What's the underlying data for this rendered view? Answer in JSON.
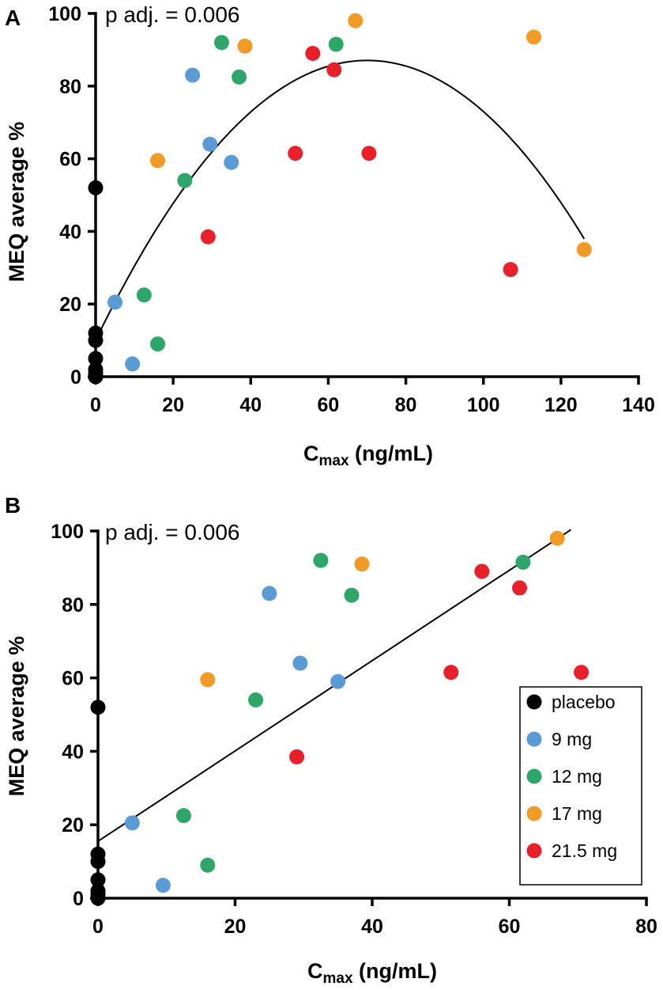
{
  "chart_data": [
    {
      "type": "scatter",
      "panel_label": "A",
      "annotation": "p adj. = 0.006",
      "xlabel_main": "C",
      "xlabel_sub": "max",
      "xlabel_unit": " (ng/mL)",
      "ylabel": "MEQ average %",
      "xlim": [
        0,
        140
      ],
      "ylim": [
        0,
        100
      ],
      "xticks": [
        0,
        20,
        40,
        60,
        80,
        100,
        120,
        140
      ],
      "yticks": [
        0,
        20,
        40,
        60,
        80,
        100
      ],
      "fit": {
        "kind": "quadratic",
        "x_range": [
          0,
          126
        ],
        "coef": [
          10,
          2.2,
          -0.0157
        ]
      },
      "series": [
        {
          "name": "placebo",
          "color": "#000000",
          "points": [
            [
              0,
              52
            ],
            [
              0,
              12
            ],
            [
              0,
              10
            ],
            [
              0,
              5
            ],
            [
              0,
              2
            ],
            [
              0,
              1
            ],
            [
              0,
              0
            ]
          ]
        },
        {
          "name": "9 mg",
          "color": "#5b9bd5",
          "points": [
            [
              5,
              20.5
            ],
            [
              9.5,
              3.5
            ],
            [
              25,
              83
            ],
            [
              29.5,
              64
            ],
            [
              35,
              59
            ]
          ]
        },
        {
          "name": "12 mg",
          "color": "#2ea66a",
          "points": [
            [
              12.5,
              22.5
            ],
            [
              16,
              9
            ],
            [
              23,
              54
            ],
            [
              32.5,
              92
            ],
            [
              37,
              82.5
            ],
            [
              62,
              91.5
            ]
          ]
        },
        {
          "name": "17 mg",
          "color": "#f29a26",
          "points": [
            [
              16,
              59.5
            ],
            [
              38.5,
              91
            ],
            [
              67,
              98
            ],
            [
              113,
              93.5
            ],
            [
              126,
              35
            ]
          ]
        },
        {
          "name": "21.5 mg",
          "color": "#e8202a",
          "points": [
            [
              29,
              38.5
            ],
            [
              51.5,
              61.5
            ],
            [
              56,
              89
            ],
            [
              61.5,
              84.5
            ],
            [
              70.5,
              61.5
            ],
            [
              107,
              29.5
            ]
          ]
        }
      ]
    },
    {
      "type": "scatter",
      "panel_label": "B",
      "annotation": "p adj. = 0.006",
      "xlabel_main": "C",
      "xlabel_sub": "max",
      "xlabel_unit": " (ng/mL)",
      "ylabel": "MEQ average %",
      "xlim": [
        0,
        80
      ],
      "ylim": [
        0,
        100
      ],
      "xticks": [
        0,
        20,
        40,
        60,
        80
      ],
      "yticks": [
        0,
        20,
        40,
        60,
        80,
        100
      ],
      "fit": {
        "kind": "linear",
        "x_range": [
          0,
          69
        ],
        "coef": [
          15.5,
          1.23
        ]
      },
      "legend": [
        "placebo",
        "9 mg",
        "12 mg",
        "17 mg",
        "21.5 mg"
      ],
      "series": [
        {
          "name": "placebo",
          "color": "#000000",
          "points": [
            [
              0,
              52
            ],
            [
              0,
              12
            ],
            [
              0,
              10
            ],
            [
              0,
              5
            ],
            [
              0,
              2
            ],
            [
              0,
              1
            ],
            [
              0,
              0
            ]
          ]
        },
        {
          "name": "9 mg",
          "color": "#5b9bd5",
          "points": [
            [
              5,
              20.5
            ],
            [
              9.5,
              3.5
            ],
            [
              25,
              83
            ],
            [
              29.5,
              64
            ],
            [
              35,
              59
            ]
          ]
        },
        {
          "name": "12 mg",
          "color": "#2ea66a",
          "points": [
            [
              12.5,
              22.5
            ],
            [
              16,
              9
            ],
            [
              23,
              54
            ],
            [
              32.5,
              92
            ],
            [
              37,
              82.5
            ],
            [
              62,
              91.5
            ]
          ]
        },
        {
          "name": "17 mg",
          "color": "#f29a26",
          "points": [
            [
              16,
              59.5
            ],
            [
              38.5,
              91
            ],
            [
              67,
              98
            ]
          ]
        },
        {
          "name": "21.5 mg",
          "color": "#e8202a",
          "points": [
            [
              29,
              38.5
            ],
            [
              51.5,
              61.5
            ],
            [
              56,
              89
            ],
            [
              61.5,
              84.5
            ],
            [
              70.5,
              61.5
            ]
          ]
        }
      ]
    }
  ]
}
